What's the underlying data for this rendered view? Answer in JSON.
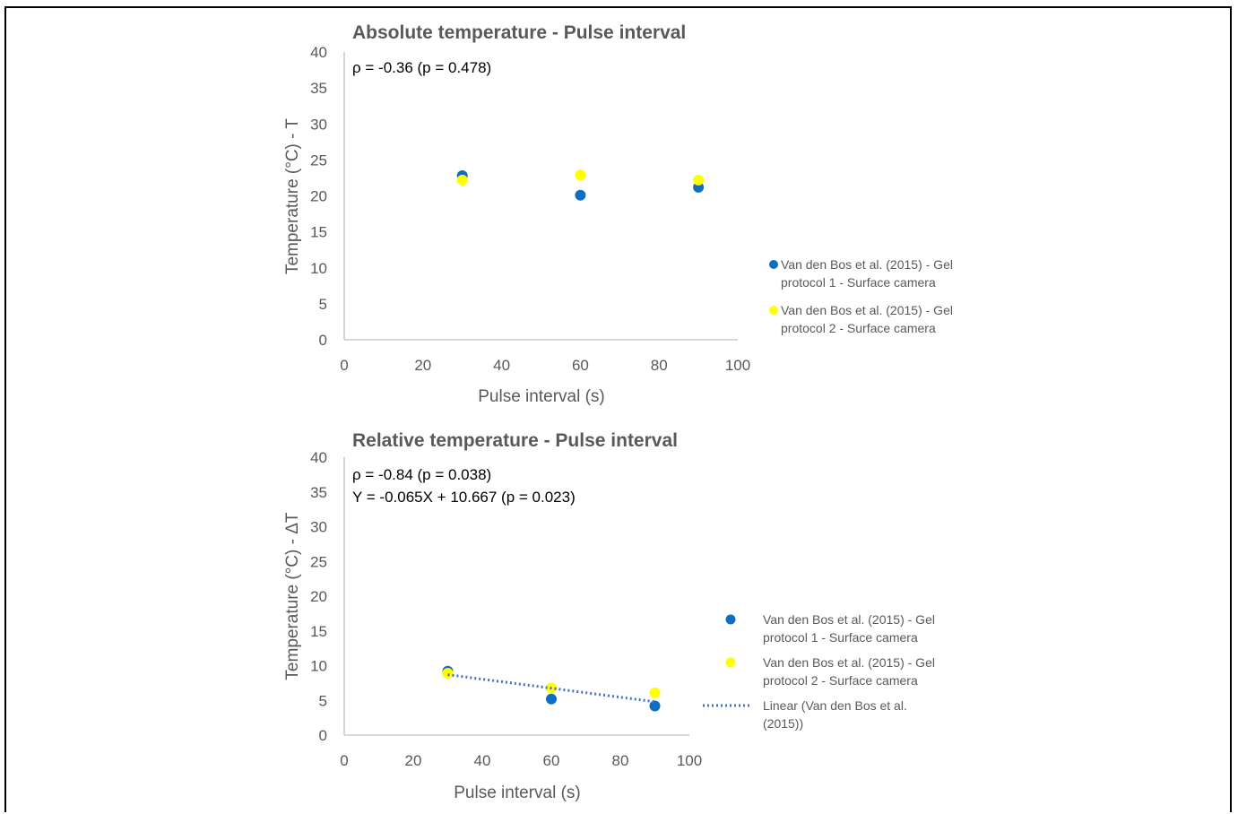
{
  "colors": {
    "series1": "#0f6ec0",
    "series2": "#ffff00",
    "trendline": "#4472c4",
    "axis": "#bfbfbf",
    "tick_text": "#595959",
    "title_text": "#595959",
    "annotation_text": "#000000"
  },
  "chart_data": [
    {
      "type": "scatter",
      "title": "Absolute temperature - Pulse interval",
      "xlabel": "Pulse interval (s)",
      "ylabel": "Temperature (°C) - T",
      "xlim": [
        0,
        100
      ],
      "ylim": [
        0,
        40
      ],
      "xticks": [
        0,
        20,
        40,
        60,
        80,
        100
      ],
      "yticks": [
        0,
        5,
        10,
        15,
        20,
        25,
        30,
        35,
        40
      ],
      "xtick_labels": [
        "0",
        "20",
        "40",
        "60",
        "80",
        "100"
      ],
      "ytick_labels": [
        "0",
        "5",
        "10",
        "15",
        "20",
        "25",
        "30",
        "35",
        "40"
      ],
      "grid": false,
      "legend_position": "right",
      "annotations": [
        "ρ = -0.36 (p = 0.478)"
      ],
      "series": [
        {
          "name": "Van den Bos et al. (2015) - Gel protocol 1 - Surface camera",
          "name_lines": [
            "Van den Bos et al. (2015) - Gel",
            "protocol 1 - Surface camera"
          ],
          "color_key": "series1",
          "x": [
            30,
            60,
            90
          ],
          "y": [
            22.8,
            20.1,
            21.2
          ]
        },
        {
          "name": "Van den Bos et al. (2015) - Gel protocol 2 - Surface camera",
          "name_lines": [
            "Van den Bos et al. (2015) - Gel",
            "protocol 2 - Surface camera"
          ],
          "color_key": "series2",
          "x": [
            30,
            60,
            90
          ],
          "y": [
            22.2,
            22.9,
            22.2
          ]
        }
      ]
    },
    {
      "type": "scatter",
      "title": "Relative temperature - Pulse interval",
      "xlabel": "Pulse interval (s)",
      "ylabel": "Temperature (°C) - ΔT",
      "xlim": [
        0,
        100
      ],
      "ylim": [
        0,
        40
      ],
      "xticks": [
        0,
        20,
        40,
        60,
        80,
        100
      ],
      "yticks": [
        0,
        5,
        10,
        15,
        20,
        25,
        30,
        35,
        40
      ],
      "xtick_labels": [
        "0",
        "20",
        "40",
        "60",
        "80",
        "100"
      ],
      "ytick_labels": [
        "0",
        "5",
        "10",
        "15",
        "20",
        "25",
        "30",
        "35",
        "40"
      ],
      "grid": false,
      "legend_position": "right",
      "annotations": [
        "ρ = -0.84 (p = 0.038)",
        "Y = -0.065X + 10.667 (p = 0.023)"
      ],
      "series": [
        {
          "name": "Van den Bos et al. (2015) - Gel protocol 1 - Surface camera",
          "name_lines": [
            "Van den Bos et al. (2015) - Gel",
            "protocol 1 - Surface camera"
          ],
          "color_key": "series1",
          "x": [
            30,
            60,
            90
          ],
          "y": [
            9.2,
            5.2,
            4.2
          ]
        },
        {
          "name": "Van den Bos et al. (2015) - Gel protocol 2 - Surface camera",
          "name_lines": [
            "Van den Bos et al. (2015) - Gel",
            "protocol 2 - Surface camera"
          ],
          "color_key": "series2",
          "x": [
            30,
            60,
            90
          ],
          "y": [
            8.9,
            6.8,
            6.1
          ]
        }
      ],
      "trendline": {
        "name": "Linear (Van den Bos et al. (2015))",
        "name_lines": [
          "Linear (Van den Bos et al.",
          "(2015))"
        ],
        "color_key": "trendline",
        "x": [
          30,
          90
        ],
        "y": [
          8.7,
          4.8
        ]
      }
    }
  ]
}
